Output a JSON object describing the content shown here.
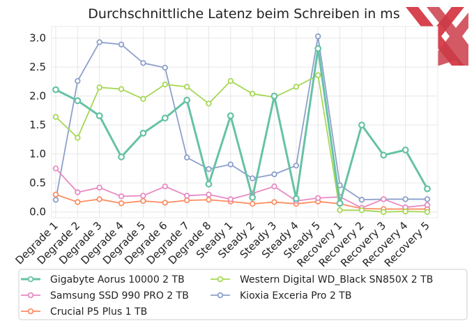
{
  "chart_data": {
    "type": "line",
    "title": "Durchschnittliche Latenz beim Schreiben in ms",
    "xlabel": "",
    "ylabel": "",
    "ylim": [
      -0.1,
      3.2
    ],
    "yticks": [
      0.0,
      0.5,
      1.0,
      1.5,
      2.0,
      2.5,
      3.0
    ],
    "ytick_labels": [
      "0.0",
      "0.5",
      "1.0",
      "1.5",
      "2.0",
      "2.5",
      "3.0"
    ],
    "grid": true,
    "legend_position": "bottom",
    "categories": [
      "Degrade 1",
      "Degrade 2",
      "Degrade 3",
      "Degrade 4",
      "Degrade 5",
      "Degrade 6",
      "Degrade 7",
      "Degrade 8",
      "Steady 1",
      "Steady 2",
      "Steady 3",
      "Steady 4",
      "Steady 5",
      "Recovery 1",
      "Recovery 2",
      "Recovery 3",
      "Recovery 4",
      "Recovery 5"
    ],
    "series": [
      {
        "name": "Gigabyte Aorus 10000 2 TB",
        "color": "#66c2a5",
        "emphasis": true,
        "values": [
          2.11,
          1.92,
          1.66,
          0.95,
          1.36,
          1.62,
          1.93,
          0.48,
          1.66,
          0.25,
          2.0,
          0.23,
          2.82,
          0.15,
          1.5,
          0.98,
          1.07,
          0.4
        ]
      },
      {
        "name": "Crucial P5 Plus 1 TB",
        "color": "#fc8d62",
        "values": [
          0.3,
          0.17,
          0.22,
          0.15,
          0.19,
          0.16,
          0.2,
          0.21,
          0.18,
          0.14,
          0.17,
          0.14,
          0.18,
          0.14,
          0.06,
          0.05,
          0.05,
          0.05
        ]
      },
      {
        "name": "Kioxia Exceria Pro 2 TB",
        "color": "#8da0cb",
        "values": [
          0.21,
          2.26,
          2.93,
          2.89,
          2.57,
          2.49,
          0.94,
          0.74,
          0.82,
          0.58,
          0.65,
          0.8,
          3.03,
          0.46,
          0.21,
          0.22,
          0.22,
          0.22
        ]
      },
      {
        "name": "Samsung SSD 990 PRO 2 TB",
        "color": "#e78ac3",
        "values": [
          0.75,
          0.34,
          0.42,
          0.27,
          0.28,
          0.44,
          0.28,
          0.3,
          0.22,
          0.32,
          0.44,
          0.19,
          0.24,
          0.26,
          0.07,
          0.22,
          0.08,
          0.12
        ]
      },
      {
        "name": "Western Digital WD_Black SN850X 2 TB",
        "color": "#a6d854",
        "values": [
          1.64,
          1.28,
          2.15,
          2.12,
          1.95,
          2.2,
          2.16,
          1.87,
          2.26,
          2.04,
          1.98,
          2.16,
          2.36,
          0.03,
          0.03,
          0.0,
          0.01,
          0.0
        ]
      }
    ],
    "legend_order": [
      0,
      3,
      1,
      4,
      2
    ]
  },
  "watermark": {
    "colors": [
      "#d32f3c",
      "#b71c2c"
    ]
  }
}
